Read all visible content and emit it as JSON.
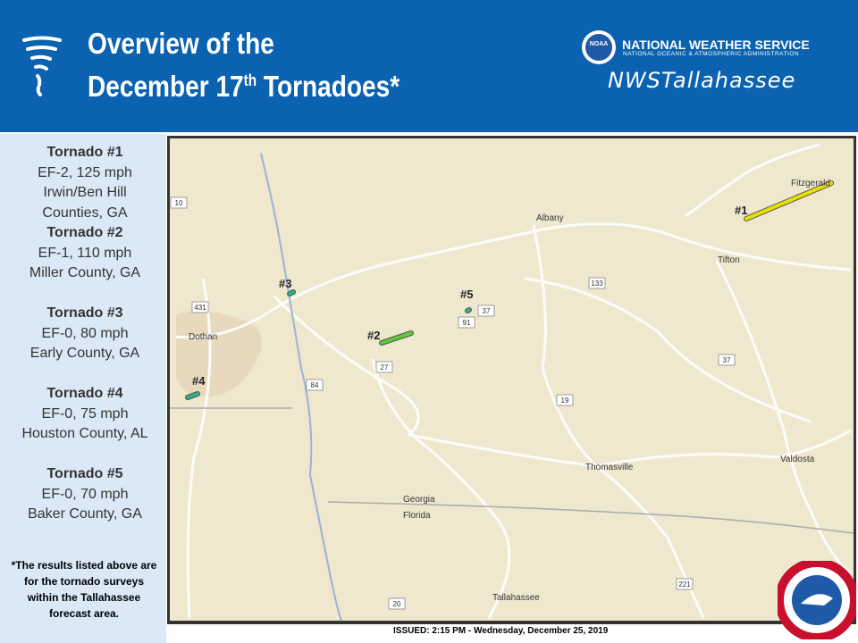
{
  "header": {
    "title_line1": "Overview of the",
    "title_line2": "December 17",
    "title_sup": "th",
    "title_end": "Tornadoes*",
    "agency": "NATIONAL WEATHER SERVICE",
    "agency_sub": "NATIONAL OCEANIC & ATMOSPHERIC ADMINISTRATION",
    "logo": "NOAA",
    "office": "NWSTallahassee"
  },
  "tornadoes": [
    {
      "title": "Tornado #1",
      "lines": [
        "EF-2, 125 mph",
        "Irwin/Ben Hill",
        "Counties, GA"
      ]
    },
    {
      "title": "Tornado #2",
      "lines": [
        "EF-1, 110 mph",
        "Miller County, GA"
      ]
    },
    {
      "title": "Tornado #3",
      "lines": [
        "EF-0, 80 mph",
        "Early County, GA"
      ]
    },
    {
      "title": "Tornado #4",
      "lines": [
        "EF-0, 75 mph",
        "Houston County, AL"
      ]
    },
    {
      "title": "Tornado #5",
      "lines": [
        "EF-0, 70 mph",
        "Baker County, GA"
      ]
    }
  ],
  "footnote": "*The results listed above are for the tornado surveys within the Tallahassee forecast area.",
  "map": {
    "tracks": [
      "#1",
      "#2",
      "#3",
      "#4",
      "#5"
    ],
    "cities": [
      "Fitzgerald",
      "Albany",
      "Tifton",
      "Dothan",
      "Thomasville",
      "Valdosta",
      "Tallahassee",
      "Georgia",
      "Florida"
    ],
    "routes": [
      "10",
      "431",
      "133",
      "37",
      "91",
      "27",
      "84",
      "19",
      "37",
      "221",
      "20"
    ]
  },
  "issued": "ISSUED: 2:15 PM - Wednesday, December 25, 2019"
}
